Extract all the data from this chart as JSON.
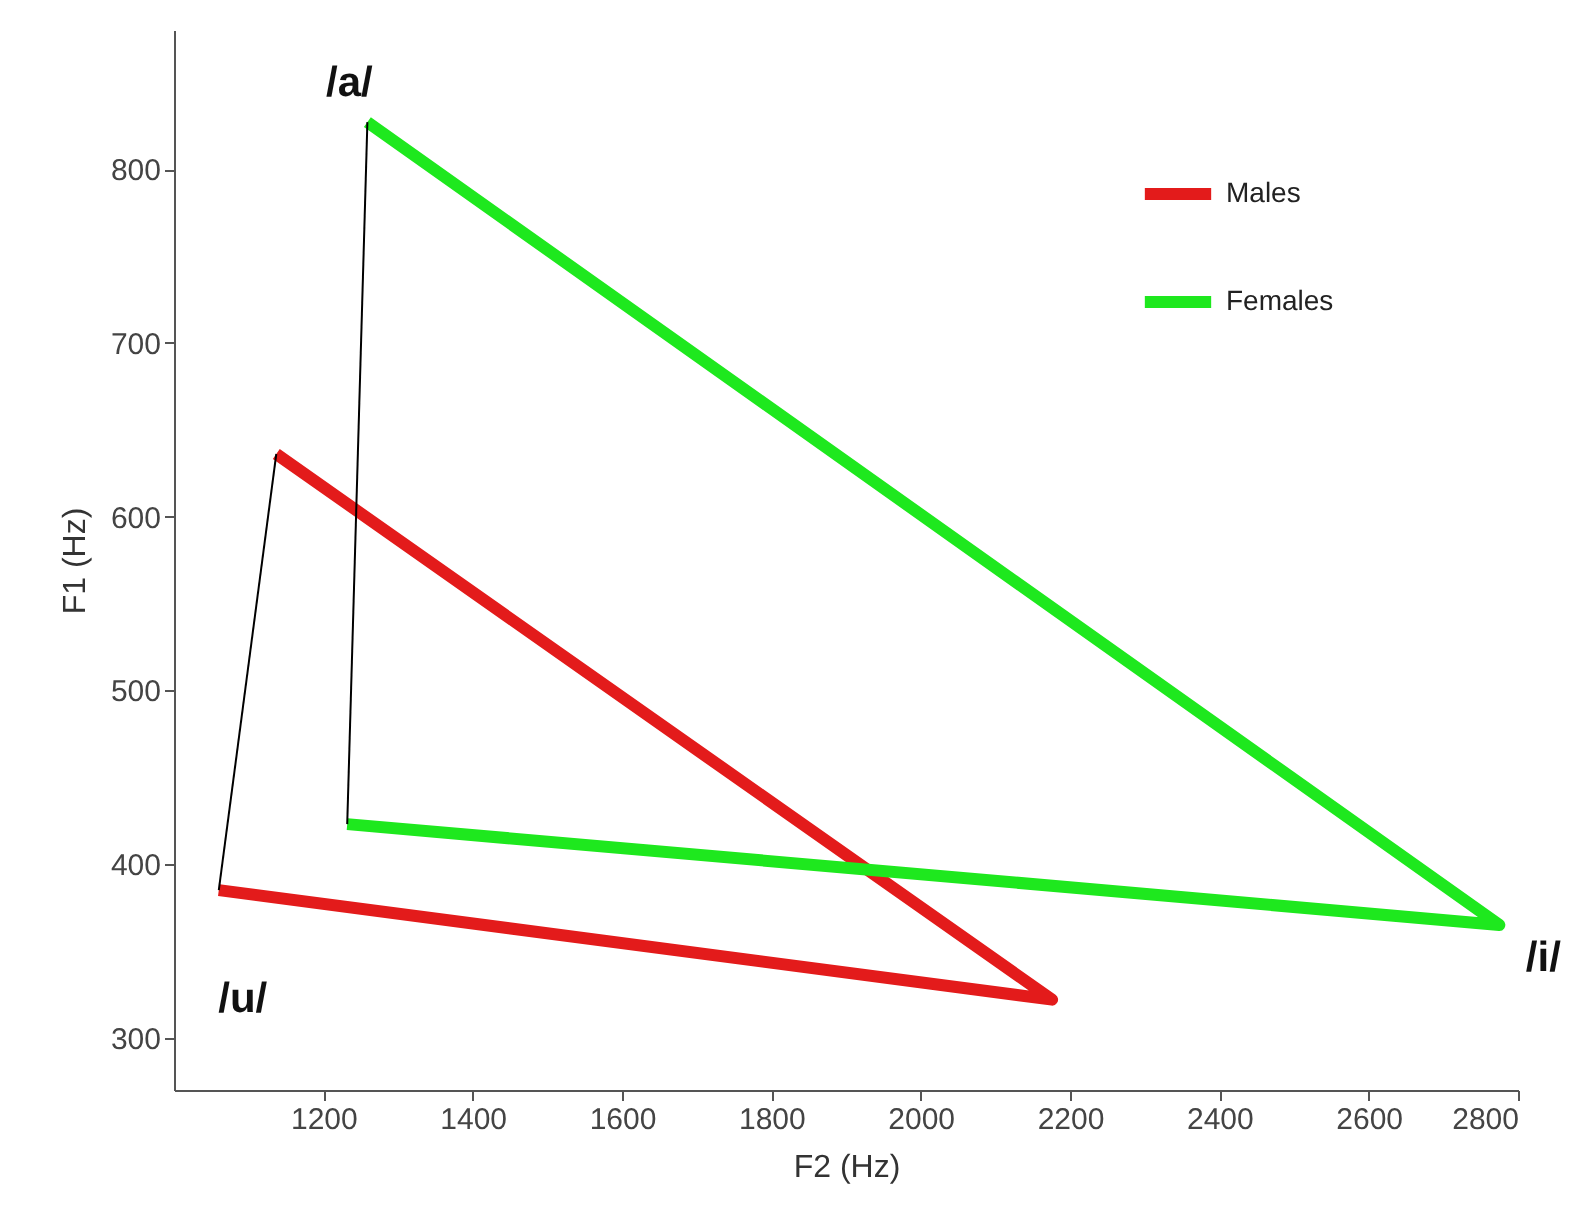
{
  "chart_data": {
    "type": "line",
    "xlabel": "F2 (Hz)",
    "ylabel": "F1 (Hz)",
    "xlim": [
      1000,
      2800
    ],
    "ylim": [
      270,
      880
    ],
    "xticks": [
      1200,
      1400,
      1600,
      1800,
      2000,
      2200,
      2400,
      2600,
      2800
    ],
    "yticks": [
      300,
      400,
      500,
      600,
      700,
      800
    ],
    "grid": false,
    "legend": "top right",
    "marker": "none",
    "line_style": "solid",
    "series": [
      {
        "name": "Males",
        "color": "#e31b1b",
        "x": [
          1137,
          2176,
          1060
        ],
        "values": [
          636,
          322,
          385
        ]
      },
      {
        "name": "Females",
        "color": "#1ee81e",
        "x": [
          1259,
          2775,
          1232
        ],
        "values": [
          827,
          365,
          423
        ]
      },
      {
        "color": "#000000",
        "x": [
          1060,
          1137
        ],
        "values": [
          385,
          636
        ]
      },
      {
        "color": "#000000",
        "x": [
          1232,
          1259
        ],
        "values": [
          423,
          827
        ]
      }
    ],
    "annotations": [
      {
        "text": "/a/",
        "x": 1259,
        "y": 827
      },
      {
        "text": "/i/",
        "x": 2775,
        "y": 365
      },
      {
        "text": "/u/",
        "x": 1060,
        "y": 385
      }
    ]
  }
}
